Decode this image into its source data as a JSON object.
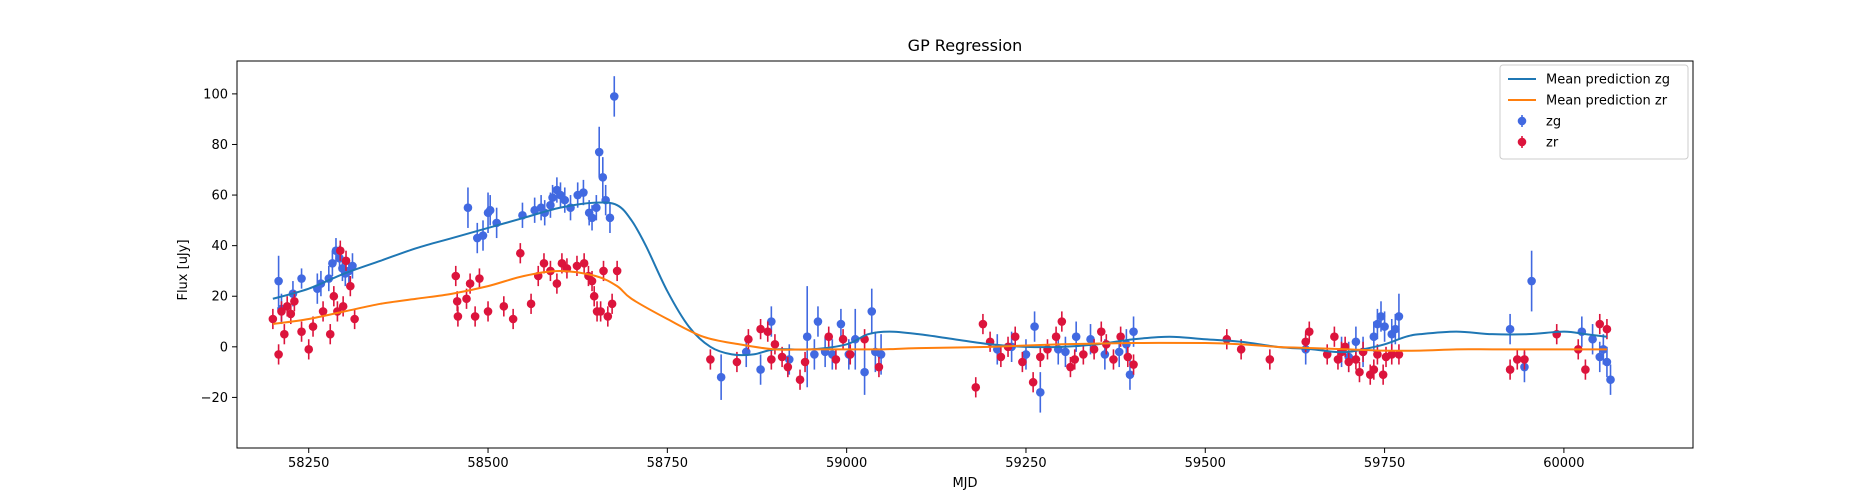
{
  "chart_data": {
    "type": "scatter",
    "title": "GP Regression",
    "xlabel": "MJD",
    "ylabel": "Flux [uJy]",
    "xlim": [
      58150,
      60180
    ],
    "ylim": [
      -40,
      113
    ],
    "xticks": [
      58250,
      58500,
      58750,
      59000,
      59250,
      59500,
      59750,
      60000
    ],
    "yticks": [
      -20,
      0,
      20,
      40,
      60,
      80,
      100
    ],
    "grid": false,
    "legend_position": "upper-right",
    "colors": {
      "zg_line": "#1f77b4",
      "zr_line": "#ff7f0e",
      "zg_points": "#4169e1",
      "zr_points": "#dc143c"
    },
    "legend": [
      {
        "label": "Mean prediction zg",
        "kind": "line",
        "color": "#1f77b4"
      },
      {
        "label": "Mean prediction zr",
        "kind": "line",
        "color": "#ff7f0e"
      },
      {
        "label": "zg",
        "kind": "errorbar",
        "color": "#4169e1"
      },
      {
        "label": "zr",
        "kind": "errorbar",
        "color": "#dc143c"
      }
    ],
    "lines": [
      {
        "name": "Mean prediction zg",
        "color": "#1f77b4",
        "x": [
          58200,
          58250,
          58300,
          58350,
          58400,
          58450,
          58500,
          58550,
          58600,
          58650,
          58680,
          58700,
          58720,
          58750,
          58780,
          58810,
          58840,
          58870,
          58900,
          58950,
          59000,
          59030,
          59060,
          59100,
          59150,
          59200,
          59250,
          59300,
          59350,
          59400,
          59450,
          59500,
          59550,
          59600,
          59650,
          59680,
          59700,
          59720,
          59750,
          59780,
          59800,
          59850,
          59900,
          59950,
          60000,
          60030,
          60060
        ],
        "y": [
          19,
          23,
          29,
          34,
          39,
          43,
          47,
          51,
          55,
          57,
          56,
          50,
          40,
          22,
          8,
          0,
          -3,
          -3,
          -1,
          -1,
          1,
          5,
          6,
          5,
          3,
          1,
          0,
          0,
          1,
          3,
          4,
          3,
          2,
          0,
          -1,
          -2,
          -2,
          -1,
          1,
          4,
          5,
          6,
          5,
          5,
          6,
          5,
          4
        ]
      },
      {
        "name": "Mean prediction zr",
        "color": "#ff7f0e",
        "x": [
          58200,
          58250,
          58300,
          58350,
          58400,
          58450,
          58500,
          58550,
          58600,
          58650,
          58680,
          58700,
          58750,
          58800,
          58850,
          58900,
          58950,
          59000,
          59050,
          59100,
          59200,
          59300,
          59400,
          59500,
          59550,
          59600,
          59650,
          59700,
          59750,
          59800,
          59850,
          59900,
          59950,
          60000,
          60060
        ],
        "y": [
          9,
          11,
          14,
          17,
          19,
          21,
          24,
          28,
          30,
          28,
          24,
          19,
          11,
          4,
          1,
          -1,
          -1,
          -1,
          -1,
          -0.5,
          0,
          1,
          1.5,
          1.5,
          1,
          0,
          -0.5,
          -1,
          -1.5,
          -1.5,
          -1,
          -1,
          -1,
          -1,
          -1
        ]
      }
    ],
    "series": [
      {
        "name": "zg",
        "color": "#4169e1",
        "x": [
          58208,
          58212,
          58228,
          58240,
          58262,
          58267,
          58278,
          58283,
          58288,
          58293,
          58297,
          58301,
          58306,
          58311,
          58472,
          58485,
          58493,
          58500,
          58503,
          58512,
          58548,
          58565,
          58574,
          58579,
          58587,
          58590,
          58596,
          58601,
          58607,
          58615,
          58625,
          58633,
          58641,
          58645,
          58651,
          58655,
          58660,
          58664,
          58670,
          58676,
          58825,
          58860,
          58880,
          58895,
          58920,
          58945,
          58955,
          58960,
          58970,
          58980,
          58992,
          59003,
          59012,
          59025,
          59035,
          59040,
          59048,
          59210,
          59230,
          59250,
          59262,
          59270,
          59295,
          59305,
          59320,
          59340,
          59360,
          59380,
          59390,
          59395,
          59400,
          59640,
          59690,
          59700,
          59710,
          59720,
          59735,
          59740,
          59745,
          59750,
          59760,
          59765,
          59770,
          59925,
          59945,
          59955,
          60025,
          60040,
          60050,
          60055,
          60060,
          60065
        ],
        "y": [
          26,
          15,
          21,
          27,
          23,
          25,
          27,
          33,
          38,
          35,
          31,
          29,
          30,
          32,
          55,
          43,
          44,
          53,
          54,
          49,
          52,
          54,
          55,
          53,
          56,
          59,
          62,
          60,
          58,
          55,
          60,
          61,
          53,
          51,
          55,
          77,
          67,
          58,
          51,
          99,
          -12,
          -2,
          -9,
          10,
          -5,
          4,
          -3,
          10,
          -2,
          -3,
          9,
          -3,
          3,
          -10,
          14,
          -2,
          -3,
          -1,
          0,
          -3,
          8,
          -18,
          -1,
          -2,
          4,
          3,
          -3,
          -2,
          1,
          -11,
          6,
          -1,
          -2,
          -4,
          2,
          -2,
          4,
          9,
          12,
          8,
          5,
          7,
          12,
          7,
          -8,
          26,
          6,
          3,
          -4,
          -1,
          -6,
          -13
        ],
        "err": [
          10,
          6,
          5,
          4,
          6,
          5,
          5,
          5,
          5,
          5,
          5,
          5,
          5,
          5,
          8,
          6,
          6,
          8,
          6,
          6,
          5,
          5,
          5,
          5,
          5,
          5,
          5,
          5,
          5,
          5,
          5,
          5,
          5,
          5,
          5,
          10,
          8,
          6,
          6,
          8,
          9,
          6,
          6,
          6,
          6,
          20,
          6,
          6,
          6,
          6,
          6,
          6,
          12,
          9,
          9,
          8,
          8,
          6,
          6,
          6,
          6,
          8,
          6,
          6,
          6,
          6,
          6,
          6,
          6,
          6,
          6,
          6,
          6,
          6,
          6,
          6,
          6,
          6,
          6,
          6,
          6,
          6,
          9,
          6,
          6,
          12,
          6,
          6,
          6,
          6,
          6,
          6
        ]
      },
      {
        "name": "zr",
        "color": "#dc143c",
        "x": [
          58200,
          58208,
          58212,
          58216,
          58220,
          58225,
          58230,
          58240,
          58250,
          58256,
          58270,
          58280,
          58285,
          58290,
          58294,
          58298,
          58302,
          58308,
          58314,
          58455,
          58457,
          58458,
          58470,
          58475,
          58482,
          58488,
          58500,
          58522,
          58535,
          58545,
          58560,
          58570,
          58578,
          58587,
          58596,
          58603,
          58610,
          58624,
          58634,
          58640,
          58645,
          58648,
          58652,
          58657,
          58661,
          58667,
          58673,
          58680,
          58810,
          58847,
          58863,
          58880,
          58890,
          58895,
          58900,
          58910,
          58918,
          58935,
          58942,
          58975,
          58985,
          58995,
          59005,
          59025,
          59045,
          59180,
          59190,
          59200,
          59215,
          59225,
          59235,
          59245,
          59260,
          59270,
          59280,
          59292,
          59300,
          59312,
          59318,
          59330,
          59345,
          59355,
          59362,
          59372,
          59382,
          59392,
          59400,
          59530,
          59550,
          59590,
          59640,
          59645,
          59670,
          59680,
          59685,
          59690,
          59695,
          59700,
          59710,
          59715,
          59720,
          59730,
          59735,
          59740,
          59748,
          59752,
          59760,
          59770,
          59925,
          59935,
          59945,
          59990,
          60020,
          60030,
          60050,
          60060
        ],
        "y": [
          11,
          -3,
          14,
          5,
          16,
          13,
          18,
          6,
          -1,
          8,
          14,
          5,
          20,
          14,
          38,
          16,
          34,
          24,
          11,
          28,
          18,
          12,
          19,
          25,
          12,
          27,
          14,
          16,
          11,
          37,
          17,
          28,
          33,
          30,
          25,
          33,
          31,
          32,
          33,
          28,
          26,
          20,
          14,
          14,
          30,
          12,
          17,
          30,
          -5,
          -6,
          3,
          7,
          6,
          -5,
          1,
          -4,
          -8,
          -13,
          -6,
          4,
          -5,
          3,
          -3,
          3,
          -8,
          -16,
          9,
          2,
          -4,
          0,
          4,
          -6,
          -14,
          -4,
          -1,
          4,
          10,
          -8,
          -5,
          -3,
          -1,
          6,
          1,
          -5,
          4,
          -4,
          -7,
          3,
          -1,
          -5,
          2,
          6,
          -3,
          4,
          -5,
          -2,
          0,
          -6,
          -5,
          -10,
          -2,
          -11,
          -9,
          -3,
          -11,
          -4,
          -3,
          -3,
          -9,
          -5,
          -5,
          5,
          -1,
          -9,
          9,
          7
        ]
      }
    ]
  }
}
